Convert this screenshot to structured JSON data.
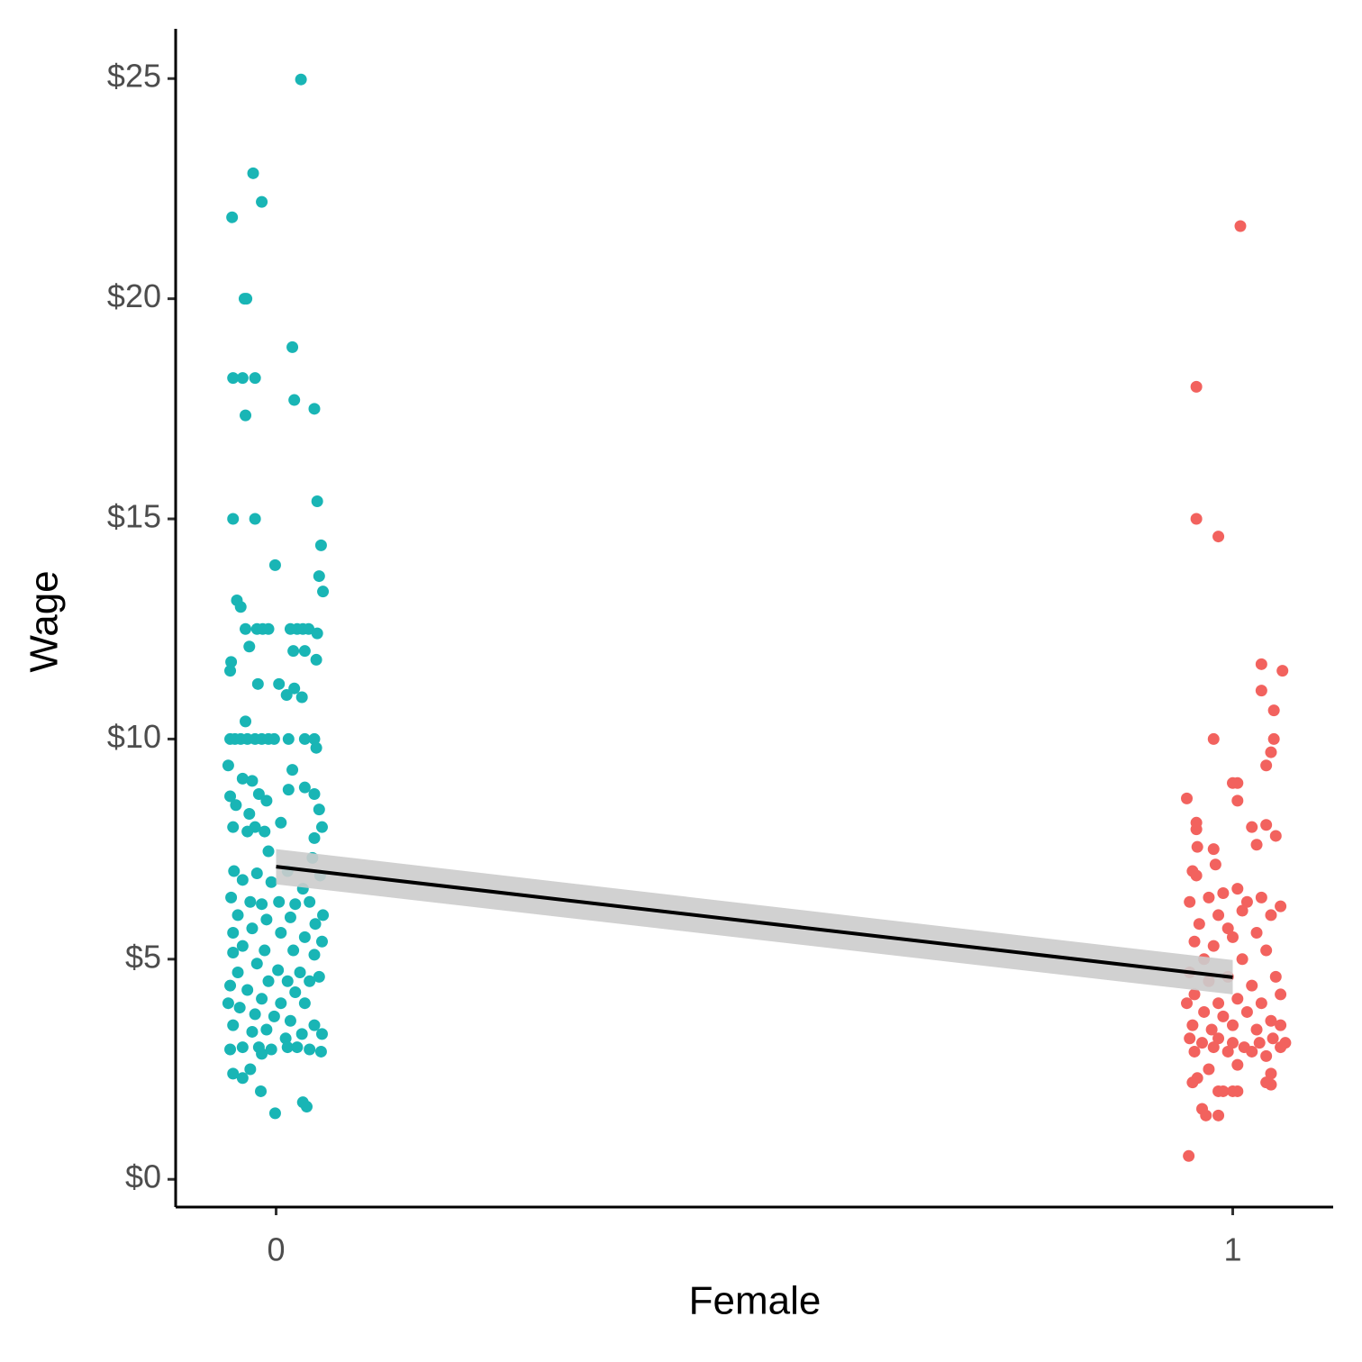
{
  "chart_data": {
    "type": "scatter",
    "x_label": "Female",
    "y_label": "Wage",
    "xlim": [
      -0.105,
      1.105
    ],
    "ylim": [
      -0.63,
      26.13
    ],
    "xticks": [
      0,
      1
    ],
    "yticks": [
      {
        "value": 0,
        "label": "$0"
      },
      {
        "value": 5,
        "label": "$5"
      },
      {
        "value": 10,
        "label": "$10"
      },
      {
        "value": 15,
        "label": "$15"
      },
      {
        "value": 20,
        "label": "$20"
      },
      {
        "value": 25,
        "label": "$25"
      }
    ],
    "grid": false,
    "series": [
      {
        "color": "#19b5b5",
        "x": [
          0.026,
          -0.024,
          -0.015,
          -0.046,
          -0.033,
          -0.031,
          0.017,
          -0.045,
          -0.035,
          -0.022,
          0.019,
          0.04,
          -0.032,
          0.043,
          -0.045,
          -0.022,
          0.047,
          -0.001,
          0.045,
          0.049,
          -0.041,
          -0.037,
          -0.032,
          -0.02,
          -0.014,
          -0.008,
          0.015,
          0.022,
          0.028,
          0.034,
          0.043,
          -0.047,
          -0.048,
          -0.028,
          0.018,
          0.03,
          0.042,
          -0.019,
          0.003,
          0.011,
          0.019,
          0.027,
          -0.032,
          -0.048,
          -0.043,
          -0.037,
          -0.03,
          -0.022,
          -0.015,
          -0.008,
          -0.002,
          0.013,
          0.03,
          0.04,
          0.042,
          -0.05,
          -0.035,
          -0.025,
          0.017,
          0.03,
          0.04,
          -0.048,
          -0.018,
          0.013,
          -0.042,
          -0.01,
          0.045,
          -0.028,
          -0.045,
          -0.022,
          0.048,
          0.005,
          -0.03,
          -0.012,
          0.04,
          -0.008,
          0.038,
          -0.044,
          -0.02,
          0.012,
          0.046,
          -0.035,
          -0.005,
          0.028,
          -0.047,
          -0.027,
          -0.015,
          0.003,
          0.02,
          0.035,
          0.049,
          -0.04,
          -0.01,
          0.015,
          0.041,
          -0.045,
          -0.025,
          0.005,
          0.03,
          0.048,
          -0.035,
          -0.012,
          0.018,
          0.04,
          -0.045,
          -0.02,
          0.002,
          0.025,
          0.045,
          -0.04,
          -0.008,
          0.012,
          0.035,
          -0.048,
          -0.03,
          0.02,
          -0.015,
          0.005,
          0.03,
          -0.05,
          -0.038,
          -0.022,
          -0.002,
          0.015,
          0.04,
          -0.045,
          -0.025,
          -0.01,
          0.01,
          0.027,
          0.048,
          -0.048,
          -0.035,
          -0.018,
          -0.005,
          0.012,
          0.022,
          0.035,
          0.047,
          -0.015,
          -0.045,
          -0.035,
          -0.027,
          -0.016,
          -0.001,
          0.028,
          0.032
        ],
        "values": [
          24.98,
          22.85,
          22.2,
          21.85,
          20.0,
          20.0,
          18.9,
          18.2,
          18.2,
          18.2,
          17.7,
          17.5,
          17.35,
          15.4,
          15.0,
          15.0,
          14.4,
          13.95,
          13.7,
          13.35,
          13.15,
          13.0,
          12.5,
          12.5,
          12.5,
          12.5,
          12.5,
          12.5,
          12.5,
          12.5,
          12.4,
          11.75,
          11.55,
          12.1,
          12.0,
          12.0,
          11.8,
          11.25,
          11.25,
          11.0,
          11.15,
          10.95,
          10.4,
          10.0,
          10.0,
          10.0,
          10.0,
          10.0,
          10.0,
          10.0,
          10.0,
          10.0,
          10.0,
          10.0,
          9.8,
          9.4,
          9.1,
          9.05,
          9.3,
          8.9,
          8.75,
          8.7,
          8.75,
          8.85,
          8.5,
          8.6,
          8.4,
          8.3,
          8.0,
          8.0,
          8.0,
          8.1,
          7.9,
          7.9,
          7.75,
          7.45,
          7.3,
          7.0,
          6.95,
          7.0,
          6.9,
          6.8,
          6.75,
          6.6,
          6.4,
          6.3,
          6.25,
          6.3,
          6.25,
          6.3,
          6.0,
          6.0,
          5.9,
          5.95,
          5.8,
          5.6,
          5.7,
          5.6,
          5.5,
          5.4,
          5.3,
          5.2,
          5.2,
          5.1,
          5.15,
          4.9,
          4.75,
          4.7,
          4.6,
          4.7,
          4.5,
          4.5,
          4.5,
          4.4,
          4.3,
          4.25,
          4.1,
          4.0,
          4.0,
          4.0,
          3.9,
          3.75,
          3.7,
          3.6,
          3.5,
          3.5,
          3.35,
          3.4,
          3.2,
          3.3,
          3.3,
          2.95,
          3.0,
          3.0,
          2.95,
          3.0,
          3.0,
          2.95,
          2.9,
          2.85,
          2.4,
          2.3,
          2.5,
          2.0,
          1.5,
          1.75,
          1.65
        ]
      },
      {
        "color": "#f2625e",
        "x": [
          1.008,
          0.962,
          0.962,
          0.985,
          1.03,
          1.052,
          1.03,
          1.043,
          0.98,
          1.043,
          1.04,
          1.035,
          1.0,
          1.005,
          0.952,
          1.005,
          0.962,
          0.962,
          1.02,
          1.035,
          1.045,
          1.025,
          0.98,
          0.963,
          0.982,
          0.958,
          0.962,
          0.975,
          0.99,
          1.005,
          1.015,
          1.03,
          1.05,
          0.955,
          0.985,
          1.01,
          1.04,
          0.965,
          0.995,
          1.025,
          0.96,
          0.98,
          1.0,
          1.035,
          0.97,
          1.01,
          1.045,
          0.955,
          0.975,
          0.995,
          1.02,
          0.96,
          0.985,
          1.005,
          1.03,
          1.05,
          0.952,
          0.97,
          0.99,
          1.015,
          1.04,
          0.958,
          0.978,
          1.0,
          1.025,
          1.05,
          0.955,
          0.968,
          0.985,
          1.0,
          1.012,
          1.028,
          1.042,
          1.055,
          0.96,
          0.98,
          0.995,
          1.02,
          1.035,
          1.05,
          0.975,
          1.005,
          1.04,
          0.958,
          0.963,
          0.985,
          0.99,
          1.0,
          1.005,
          1.035,
          1.04,
          0.972,
          0.968,
          0.985,
          0.954
        ],
        "values": [
          21.65,
          18.0,
          15.0,
          14.6,
          11.7,
          11.55,
          11.1,
          10.65,
          10.0,
          10.0,
          9.7,
          9.4,
          9.0,
          9.0,
          8.65,
          8.6,
          8.1,
          7.95,
          8.0,
          8.05,
          7.8,
          7.6,
          7.5,
          7.55,
          7.15,
          7.0,
          6.9,
          6.4,
          6.5,
          6.6,
          6.3,
          6.4,
          6.2,
          6.3,
          6.0,
          6.1,
          6.0,
          5.8,
          5.7,
          5.6,
          5.4,
          5.3,
          5.5,
          5.2,
          5.0,
          5.0,
          4.6,
          4.7,
          4.5,
          4.6,
          4.4,
          4.2,
          4.0,
          4.1,
          4.0,
          4.2,
          4.0,
          3.8,
          3.7,
          3.8,
          3.6,
          3.5,
          3.4,
          3.5,
          3.4,
          3.5,
          3.2,
          3.1,
          3.2,
          3.1,
          3.0,
          3.1,
          3.2,
          3.1,
          2.9,
          3.0,
          2.9,
          2.9,
          2.8,
          3.0,
          2.5,
          2.6,
          2.4,
          2.2,
          2.3,
          2.0,
          2.0,
          2.0,
          2.0,
          2.2,
          2.15,
          1.45,
          1.6,
          1.45,
          0.53
        ]
      }
    ],
    "fit": {
      "color": "#000000",
      "band_color": "#cccccc",
      "x": [
        0,
        1
      ],
      "y": [
        7.1,
        4.59
      ],
      "lower": [
        6.7,
        4.2
      ],
      "upper": [
        7.5,
        4.98
      ]
    }
  }
}
